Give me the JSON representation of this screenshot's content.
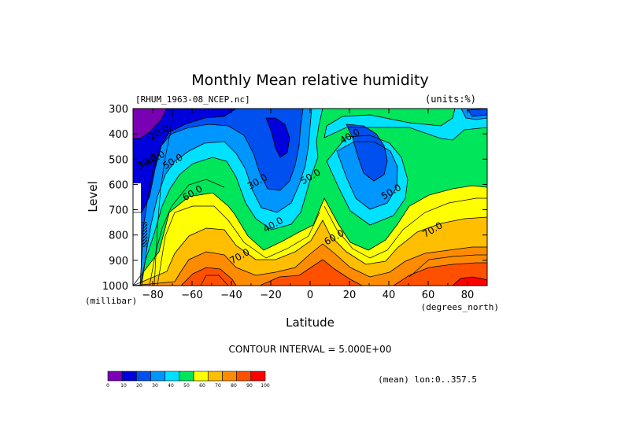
{
  "chart_data": {
    "type": "heatmap",
    "subtype": "filled-contour",
    "title": "Monthly Mean relative humidity",
    "file_label": "[RHUM_1963-08_NCEP.nc]",
    "units_label": "(units:%)",
    "xlabel": "Latitude",
    "x_units": "(degrees_north)",
    "ylabel": "Level",
    "y_units": "(millibar)",
    "xlim": [
      -90,
      90
    ],
    "ylim": [
      1000,
      300
    ],
    "y_inverted": true,
    "x_ticks": [
      -80,
      -60,
      -40,
      -20,
      0,
      20,
      40,
      60,
      80
    ],
    "y_ticks": [
      300,
      400,
      500,
      600,
      700,
      800,
      900,
      1000
    ],
    "contour_interval_text": "CONTOUR INTERVAL = 5.000E+00",
    "mean_text": "(mean) lon:0..357.5",
    "contour_labels": [
      {
        "text": "20.0",
        "x": -76,
        "y": 405
      },
      {
        "text": "30.0",
        "x": -82,
        "y": 520
      },
      {
        "text": "40.0",
        "x": -78,
        "y": 508
      },
      {
        "text": "50.0",
        "x": -69,
        "y": 520
      },
      {
        "text": "60.0",
        "x": -59,
        "y": 645
      },
      {
        "text": "70.0",
        "x": -35,
        "y": 895
      },
      {
        "text": "30.0",
        "x": -26,
        "y": 600
      },
      {
        "text": "40.0",
        "x": -18,
        "y": 770
      },
      {
        "text": "50.0",
        "x": 1,
        "y": 580
      },
      {
        "text": "60.0",
        "x": 13,
        "y": 820
      },
      {
        "text": "40.0",
        "x": 21,
        "y": 420
      },
      {
        "text": "50.0",
        "x": 42,
        "y": 640
      },
      {
        "text": "70.0",
        "x": 63,
        "y": 790
      }
    ],
    "colorbar": {
      "ticks": [
        "0",
        "10",
        "20",
        "30",
        "40",
        "50",
        "60",
        "70",
        "80",
        "90",
        "100"
      ],
      "colors": [
        "#7a00b4",
        "#0000dc",
        "#0050f0",
        "#0096ff",
        "#00e1ff",
        "#00e65a",
        "#ffff00",
        "#ffbe00",
        "#ff8c00",
        "#ff5000",
        "#ff0000"
      ]
    },
    "band_colors": {
      "violet": "#7a00b4",
      "blue": "#0000dc",
      "mid_blue": "#0050f0",
      "sky_blue": "#0096ff",
      "cyan": "#00e1ff",
      "green": "#00e65a",
      "yellow": "#ffff00",
      "light_orange": "#ffbe00",
      "orange": "#ff8c00",
      "red_orange": "#ff5000",
      "red": "#ff0000"
    }
  }
}
